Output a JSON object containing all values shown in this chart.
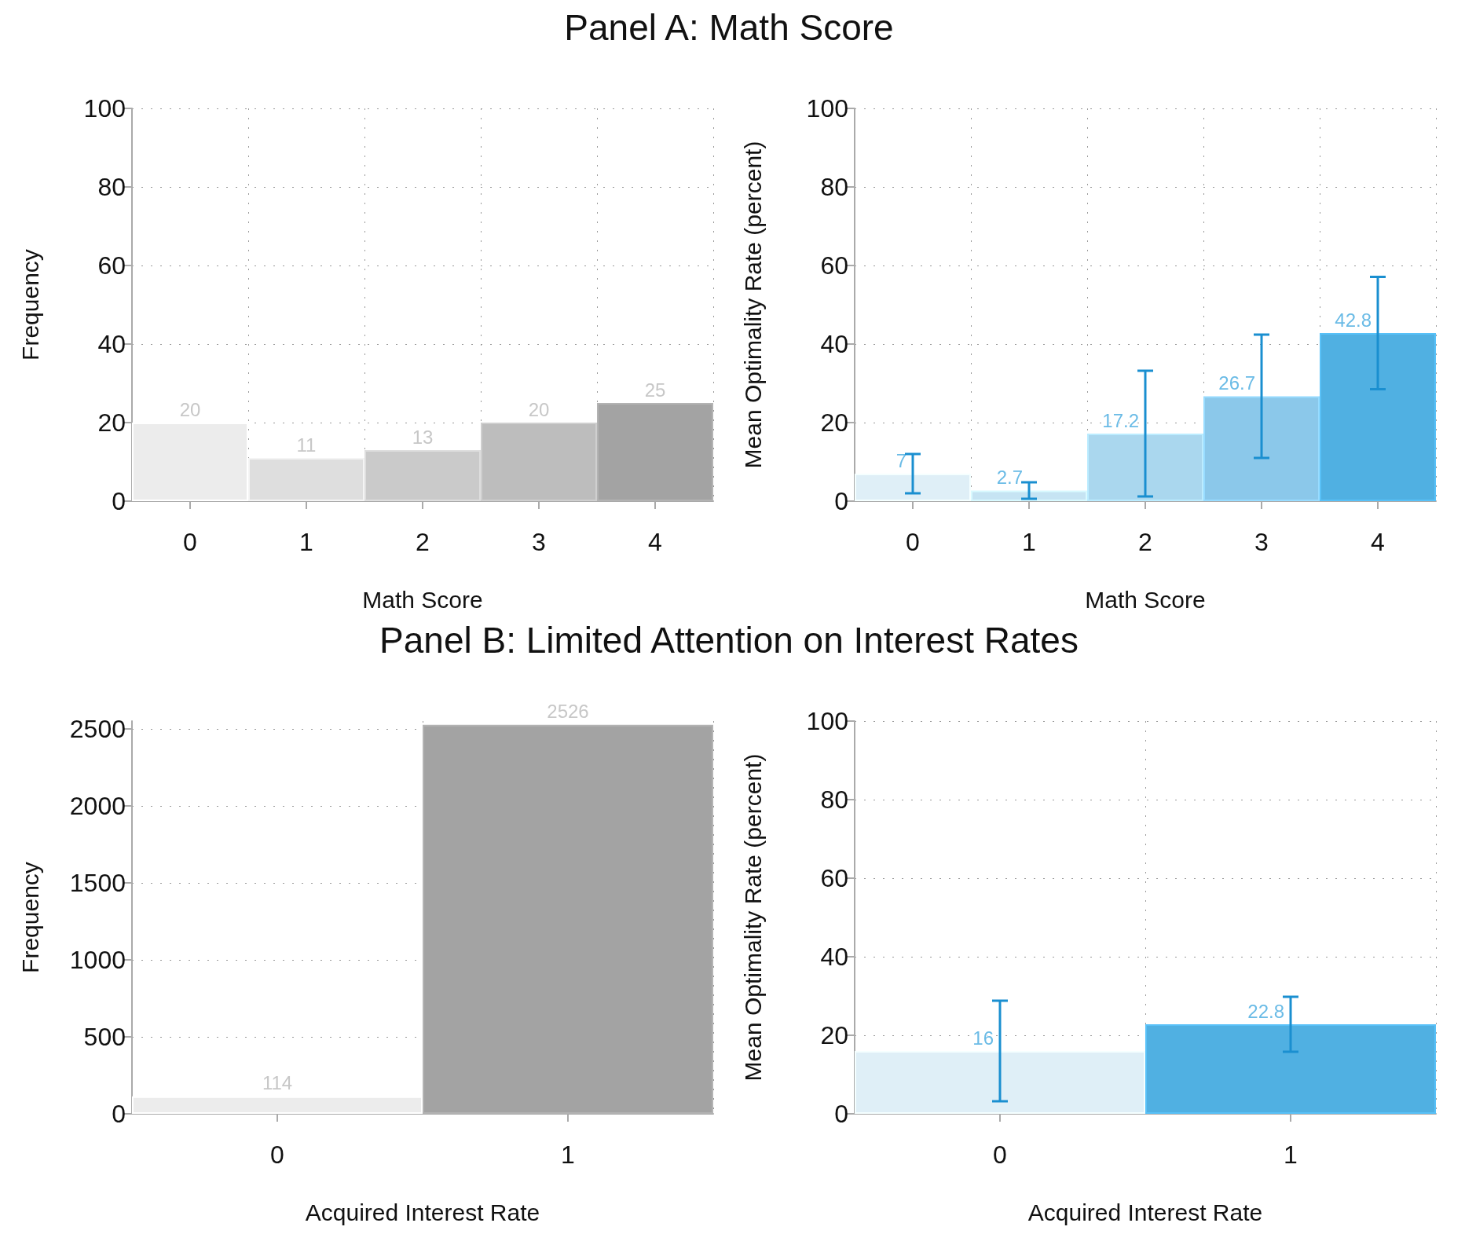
{
  "chart_data": [
    {
      "type": "bar",
      "title": "Panel A: Math Score",
      "xlabel": "Math Score",
      "ylabel": "Frequency",
      "categories": [
        "0",
        "1",
        "2",
        "3",
        "4"
      ],
      "values": [
        20,
        11,
        13,
        20,
        25
      ],
      "colors": [
        "#ececec",
        "#dedede",
        "#cacaca",
        "#bdbdbd",
        "#a3a3a3"
      ],
      "ylim": [
        0,
        100
      ],
      "yticks": [
        0,
        20,
        40,
        60,
        80,
        100
      ],
      "grid": true,
      "data_labels": true
    },
    {
      "type": "bar",
      "xlabel": "Math Score",
      "ylabel": "Mean Optimality Rate (percent)",
      "categories": [
        "0",
        "1",
        "2",
        "3",
        "4"
      ],
      "values": [
        7,
        2.7,
        17.2,
        26.7,
        42.8
      ],
      "errors": [
        5,
        2.1,
        16,
        15.7,
        14.3
      ],
      "colors": [
        "#dfeff7",
        "#c6e4f3",
        "#aad7ee",
        "#8bc8ea",
        "#50b0e2"
      ],
      "ylim": [
        0,
        100
      ],
      "yticks": [
        0,
        20,
        40,
        60,
        80,
        100
      ],
      "grid": true,
      "data_labels": true
    },
    {
      "type": "bar",
      "title": "Panel B: Limited Attention on Interest Rates",
      "xlabel": "Acquired Interest Rate",
      "ylabel": "Frequency",
      "categories": [
        "0",
        "1"
      ],
      "values": [
        114,
        2526
      ],
      "colors": [
        "#ececec",
        "#a3a3a3"
      ],
      "ylim": [
        0,
        2550
      ],
      "yticks": [
        0,
        500,
        1000,
        1500,
        2000,
        2500
      ],
      "grid": true,
      "data_labels": true
    },
    {
      "type": "bar",
      "xlabel": "Acquired Interest Rate",
      "ylabel": "Mean Optimality Rate (percent)",
      "categories": [
        "0",
        "1"
      ],
      "values": [
        16,
        22.8
      ],
      "errors": [
        12.8,
        7
      ],
      "colors": [
        "#dfeff7",
        "#50b0e2"
      ],
      "ylim": [
        0,
        100
      ],
      "yticks": [
        0,
        20,
        40,
        60,
        80,
        100
      ],
      "grid": true,
      "data_labels": true
    }
  ]
}
